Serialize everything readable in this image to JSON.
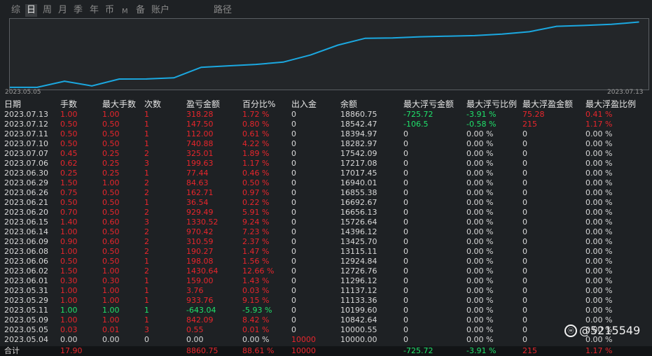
{
  "tabs": [
    {
      "label": "综",
      "active": false
    },
    {
      "label": "日",
      "active": true
    },
    {
      "label": "周",
      "active": false
    },
    {
      "label": "月",
      "active": false
    },
    {
      "label": "季",
      "active": false
    },
    {
      "label": "年",
      "active": false
    },
    {
      "label": "币",
      "active": false
    },
    {
      "label": "M",
      "active": false
    },
    {
      "label": "备",
      "active": false
    },
    {
      "label": "账户",
      "active": false
    },
    {
      "label": "路径",
      "active": false
    }
  ],
  "chart_data": {
    "type": "line",
    "x": [
      "2023.05.04",
      "2023.05.05",
      "2023.05.09",
      "2023.05.11",
      "2023.05.29",
      "2023.05.31",
      "2023.06.01",
      "2023.06.02",
      "2023.06.06",
      "2023.06.08",
      "2023.06.09",
      "2023.06.14",
      "2023.06.15",
      "2023.06.20",
      "2023.06.21",
      "2023.06.26",
      "2023.06.29",
      "2023.06.30",
      "2023.07.06",
      "2023.07.07",
      "2023.07.10",
      "2023.07.11",
      "2023.07.12",
      "2023.07.13"
    ],
    "series": [
      {
        "values": [
          10000,
          10000.55,
          10842.64,
          10199.6,
          11133.36,
          11137.12,
          11296.12,
          12726.76,
          12924.84,
          13115.11,
          13425.7,
          14396.12,
          15726.64,
          16656.13,
          16692.67,
          16855.38,
          16940.01,
          17017.45,
          17217.08,
          17542.09,
          18282.97,
          18394.97,
          18542.47,
          18860.75
        ]
      }
    ],
    "x_start_label": "2023.05.05",
    "x_end_label": "2023.07.13",
    "ylim": [
      9900,
      19000
    ],
    "color": "#1ba8e0"
  },
  "headers": [
    "日期",
    "手数",
    "最大手数",
    "次数",
    "盈亏金额",
    "百分比%",
    "出入金",
    "余额",
    "最大浮亏金额",
    "最大浮亏比例",
    "最大浮盈金额",
    "最大浮盈比例"
  ],
  "rows": [
    [
      "2023.07.13",
      "1.00",
      "1.00",
      "1",
      "318.28",
      "1.72 %",
      "0",
      "18860.75",
      "-725.72",
      "-3.91 %",
      "75.28",
      "0.41 %"
    ],
    [
      "2023.07.12",
      "0.50",
      "0.50",
      "1",
      "147.50",
      "0.80 %",
      "0",
      "18542.47",
      "-106.5",
      "-0.58 %",
      "215",
      "1.17 %"
    ],
    [
      "2023.07.11",
      "0.50",
      "0.50",
      "1",
      "112.00",
      "0.61 %",
      "0",
      "18394.97",
      "0",
      "0.00 %",
      "0",
      "0.00 %"
    ],
    [
      "2023.07.10",
      "0.50",
      "0.50",
      "1",
      "740.88",
      "4.22 %",
      "0",
      "18282.97",
      "0",
      "0.00 %",
      "0",
      "0.00 %"
    ],
    [
      "2023.07.07",
      "0.45",
      "0.25",
      "2",
      "325.01",
      "1.89 %",
      "0",
      "17542.09",
      "0",
      "0.00 %",
      "0",
      "0.00 %"
    ],
    [
      "2023.07.06",
      "0.62",
      "0.25",
      "3",
      "199.63",
      "1.17 %",
      "0",
      "17217.08",
      "0",
      "0.00 %",
      "0",
      "0.00 %"
    ],
    [
      "2023.06.30",
      "0.25",
      "0.25",
      "1",
      "77.44",
      "0.46 %",
      "0",
      "17017.45",
      "0",
      "0.00 %",
      "0",
      "0.00 %"
    ],
    [
      "2023.06.29",
      "1.50",
      "1.00",
      "2",
      "84.63",
      "0.50 %",
      "0",
      "16940.01",
      "0",
      "0.00 %",
      "0",
      "0.00 %"
    ],
    [
      "2023.06.26",
      "0.75",
      "0.50",
      "2",
      "162.71",
      "0.97 %",
      "0",
      "16855.38",
      "0",
      "0.00 %",
      "0",
      "0.00 %"
    ],
    [
      "2023.06.21",
      "0.50",
      "0.50",
      "1",
      "36.54",
      "0.22 %",
      "0",
      "16692.67",
      "0",
      "0.00 %",
      "0",
      "0.00 %"
    ],
    [
      "2023.06.20",
      "0.70",
      "0.50",
      "2",
      "929.49",
      "5.91 %",
      "0",
      "16656.13",
      "0",
      "0.00 %",
      "0",
      "0.00 %"
    ],
    [
      "2023.06.15",
      "1.40",
      "0.60",
      "3",
      "1330.52",
      "9.24 %",
      "0",
      "15726.64",
      "0",
      "0.00 %",
      "0",
      "0.00 %"
    ],
    [
      "2023.06.14",
      "1.00",
      "0.50",
      "2",
      "970.42",
      "7.23 %",
      "0",
      "14396.12",
      "0",
      "0.00 %",
      "0",
      "0.00 %"
    ],
    [
      "2023.06.09",
      "0.90",
      "0.60",
      "2",
      "310.59",
      "2.37 %",
      "0",
      "13425.70",
      "0",
      "0.00 %",
      "0",
      "0.00 %"
    ],
    [
      "2023.06.08",
      "1.00",
      "0.50",
      "2",
      "190.27",
      "1.47 %",
      "0",
      "13115.11",
      "0",
      "0.00 %",
      "0",
      "0.00 %"
    ],
    [
      "2023.06.06",
      "0.50",
      "0.50",
      "1",
      "198.08",
      "1.56 %",
      "0",
      "12924.84",
      "0",
      "0.00 %",
      "0",
      "0.00 %"
    ],
    [
      "2023.06.02",
      "1.50",
      "1.00",
      "2",
      "1430.64",
      "12.66 %",
      "0",
      "12726.76",
      "0",
      "0.00 %",
      "0",
      "0.00 %"
    ],
    [
      "2023.06.01",
      "0.30",
      "0.30",
      "1",
      "159.00",
      "1.43 %",
      "0",
      "11296.12",
      "0",
      "0.00 %",
      "0",
      "0.00 %"
    ],
    [
      "2023.05.31",
      "1.00",
      "1.00",
      "1",
      "3.76",
      "0.03 %",
      "0",
      "11137.12",
      "0",
      "0.00 %",
      "0",
      "0.00 %"
    ],
    [
      "2023.05.29",
      "1.00",
      "1.00",
      "1",
      "933.76",
      "9.15 %",
      "0",
      "11133.36",
      "0",
      "0.00 %",
      "0",
      "0.00 %"
    ],
    [
      "2023.05.11",
      "1.00",
      "1.00",
      "1",
      "-643.04",
      "-5.93 %",
      "0",
      "10199.60",
      "0",
      "0.00 %",
      "0",
      "0.00 %"
    ],
    [
      "2023.05.09",
      "1.00",
      "1.00",
      "1",
      "842.09",
      "8.42 %",
      "0",
      "10842.64",
      "0",
      "0.00 %",
      "0",
      "0.00 %"
    ],
    [
      "2023.05.05",
      "0.03",
      "0.01",
      "3",
      "0.55",
      "0.01 %",
      "0",
      "10000.55",
      "0",
      "0.00 %",
      "0",
      "0.00 %"
    ],
    [
      "2023.05.04",
      "0.00",
      "0.00",
      "0",
      "0.00",
      "0.00 %",
      "10000",
      "10000.00",
      "0",
      "0.00 %",
      "0",
      "0.00 %"
    ]
  ],
  "total": [
    "合计",
    "17.90",
    "",
    "",
    "8860.75",
    "88.61 %",
    "10000",
    "",
    "-725.72",
    "-3.91 %",
    "215",
    "1.17 %"
  ],
  "watermark": "@5215549"
}
